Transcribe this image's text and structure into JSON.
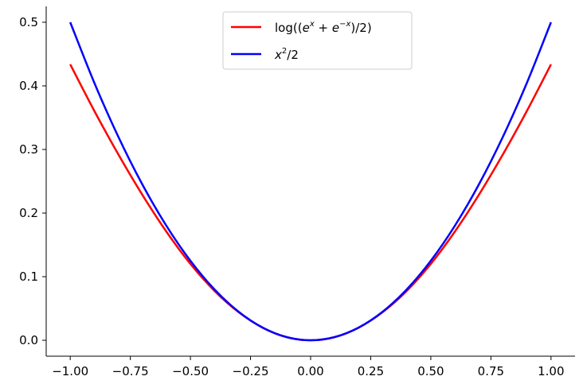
{
  "chart_data": {
    "type": "line",
    "title": "",
    "xlabel": "",
    "ylabel": "",
    "xlim": [
      -1.1,
      1.1
    ],
    "ylim": [
      -0.025,
      0.525
    ],
    "grid": false,
    "legend_position": "top-center",
    "x_ticks": [
      -1.0,
      -0.75,
      -0.5,
      -0.25,
      0.0,
      0.25,
      0.5,
      0.75,
      1.0
    ],
    "x_tick_labels": [
      "−1.00",
      "−0.75",
      "−0.50",
      "−0.25",
      "0.00",
      "0.25",
      "0.50",
      "0.75",
      "1.00"
    ],
    "y_ticks": [
      0.0,
      0.1,
      0.2,
      0.3,
      0.4,
      0.5
    ],
    "y_tick_labels": [
      "0.0",
      "0.1",
      "0.2",
      "0.3",
      "0.4",
      "0.5"
    ],
    "series": [
      {
        "name": "log((e^x + e^−x)/2)",
        "color": "#ff0000",
        "x": [
          -1.0,
          -0.9,
          -0.8,
          -0.7,
          -0.6,
          -0.5,
          -0.4,
          -0.3,
          -0.2,
          -0.1,
          0.0,
          0.1,
          0.2,
          0.3,
          0.4,
          0.5,
          0.6,
          0.7,
          0.8,
          0.9,
          1.0
        ],
        "y": [
          0.4338,
          0.3608,
          0.2923,
          0.2287,
          0.1708,
          0.1201,
          0.0777,
          0.0443,
          0.0199,
          0.005,
          0.0,
          0.005,
          0.0199,
          0.0443,
          0.0777,
          0.1201,
          0.1708,
          0.2287,
          0.2923,
          0.3608,
          0.4338
        ]
      },
      {
        "name": "x²/2",
        "color": "#0000ff",
        "x": [
          -1.0,
          -0.9,
          -0.8,
          -0.7,
          -0.6,
          -0.5,
          -0.4,
          -0.3,
          -0.2,
          -0.1,
          0.0,
          0.1,
          0.2,
          0.3,
          0.4,
          0.5,
          0.6,
          0.7,
          0.8,
          0.9,
          1.0
        ],
        "y": [
          0.5,
          0.405,
          0.32,
          0.245,
          0.18,
          0.125,
          0.08,
          0.045,
          0.02,
          0.005,
          0.0,
          0.005,
          0.02,
          0.045,
          0.08,
          0.125,
          0.18,
          0.245,
          0.32,
          0.405,
          0.5
        ]
      }
    ]
  }
}
